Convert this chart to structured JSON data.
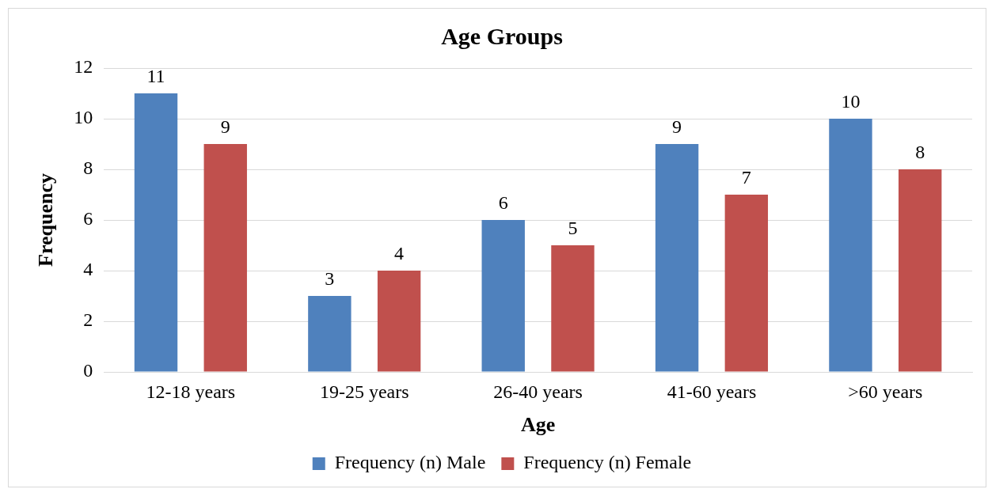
{
  "chart_data": {
    "type": "bar",
    "title": "Age Groups",
    "xlabel": "Age",
    "ylabel": "Frequency",
    "categories": [
      "12-18 years",
      "19-25 years",
      "26-40 years",
      "41-60 years",
      ">60 years"
    ],
    "series": [
      {
        "name": "Frequency (n) Male",
        "color": "#4f81bd",
        "values": [
          11,
          3,
          6,
          9,
          10
        ]
      },
      {
        "name": "Frequency (n) Female",
        "color": "#c0504d",
        "values": [
          9,
          4,
          5,
          7,
          8
        ]
      }
    ],
    "ylim": [
      0,
      12
    ],
    "yticks": [
      0,
      2,
      4,
      6,
      8,
      10,
      12
    ],
    "grid": "y",
    "legend": "bottom",
    "data_labels": true
  }
}
